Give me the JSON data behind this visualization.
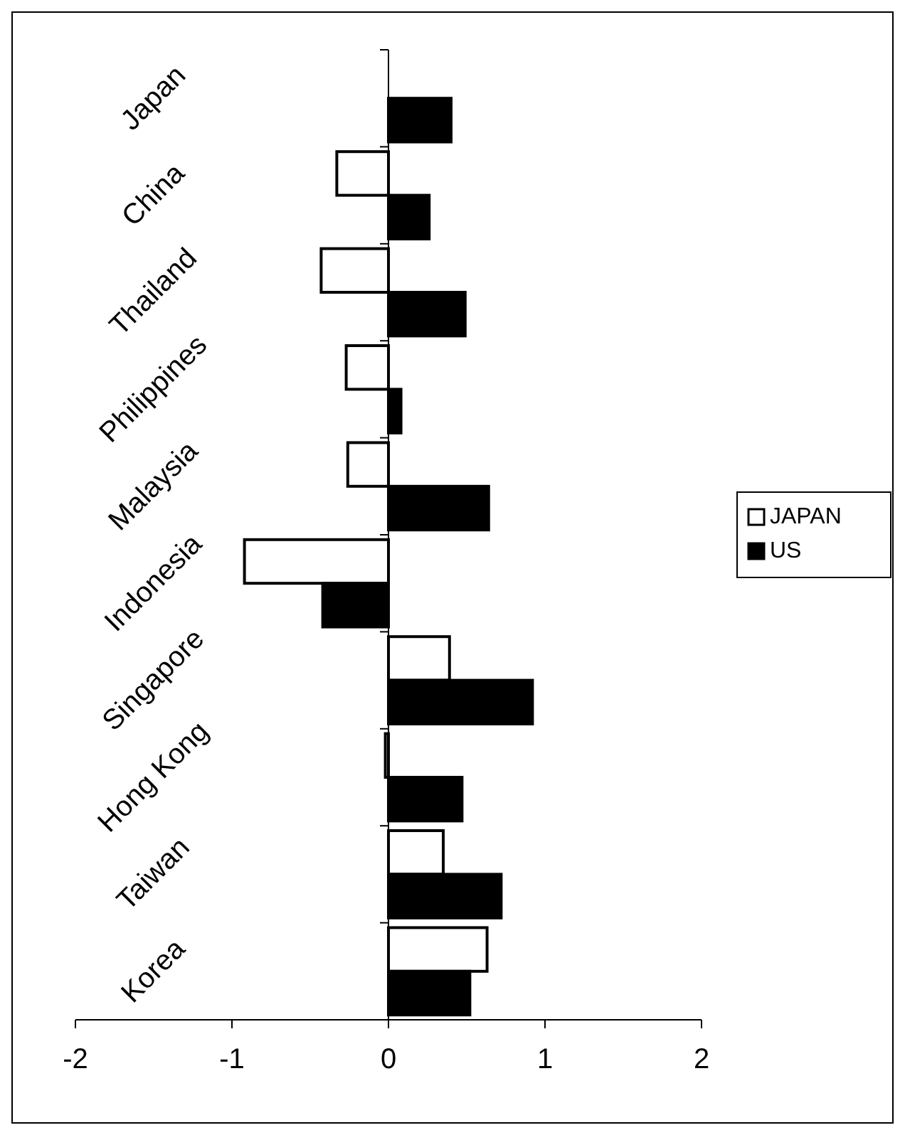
{
  "chart_data": {
    "type": "bar",
    "orientation": "horizontal",
    "categories": [
      "Japan",
      "China",
      "Thailand",
      "Philippines",
      "Malaysia",
      "Indonesia",
      "Singapore",
      "Hong Kong",
      "Taiwan",
      "Korea"
    ],
    "series": [
      {
        "name": "JAPAN",
        "color": "#ffffff",
        "values": [
          null,
          -0.33,
          -0.43,
          -0.27,
          -0.26,
          -0.92,
          0.39,
          -0.02,
          0.35,
          0.63
        ]
      },
      {
        "name": "US",
        "color": "#000000",
        "values": [
          0.4,
          0.26,
          0.49,
          0.08,
          0.64,
          -0.42,
          0.92,
          0.47,
          0.72,
          0.52
        ]
      }
    ],
    "xlim": [
      -2,
      2
    ],
    "xticks": [
      -2,
      -1,
      0,
      1,
      2
    ],
    "legend": "right"
  }
}
